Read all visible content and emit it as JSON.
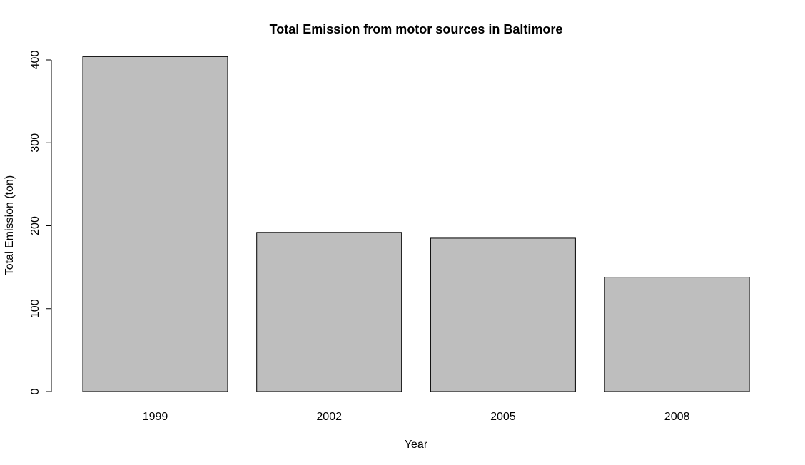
{
  "chart_data": {
    "type": "bar",
    "title": "Total Emission from motor sources in Baltimore",
    "xlabel": "Year",
    "ylabel": "Total Emission (ton)",
    "categories": [
      "1999",
      "2002",
      "2005",
      "2008"
    ],
    "values": [
      404,
      192,
      185,
      138
    ],
    "ylim": [
      0,
      400
    ],
    "yticks": [
      "0",
      "100",
      "200",
      "300",
      "400"
    ],
    "grid": false,
    "legend": "none",
    "bar_color": "#bebebe",
    "bar_border_color": "#000000"
  }
}
